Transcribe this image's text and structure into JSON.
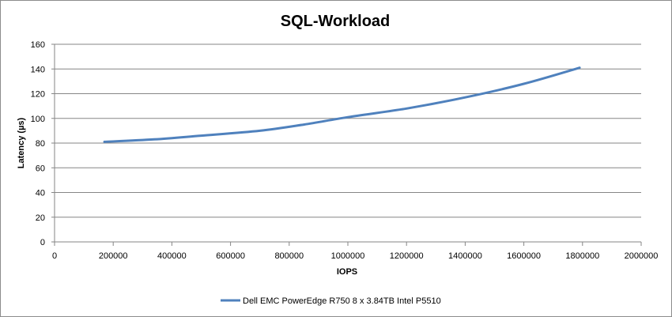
{
  "chart_data": {
    "type": "line",
    "title": "SQL-Workload",
    "xlabel": "IOPS",
    "ylabel": "Latency (µs)",
    "xlim": [
      0,
      2000000
    ],
    "ylim": [
      0,
      160
    ],
    "xticks": [
      0,
      200000,
      400000,
      600000,
      800000,
      1000000,
      1200000,
      1400000,
      1600000,
      1800000,
      2000000
    ],
    "yticks": [
      0,
      20,
      40,
      60,
      80,
      100,
      120,
      140,
      160
    ],
    "grid": "horizontal",
    "legend_position": "bottom",
    "series": [
      {
        "name": "Dell EMC PowerEdge R750 8 x 3.84TB Intel P5510",
        "color": "#4f81bd",
        "x": [
          170000,
          340000,
          500000,
          700000,
          850000,
          1000000,
          1200000,
          1400000,
          1600000,
          1790000
        ],
        "y": [
          81,
          83,
          86,
          90,
          95,
          101,
          108,
          117,
          128,
          141
        ]
      }
    ]
  }
}
